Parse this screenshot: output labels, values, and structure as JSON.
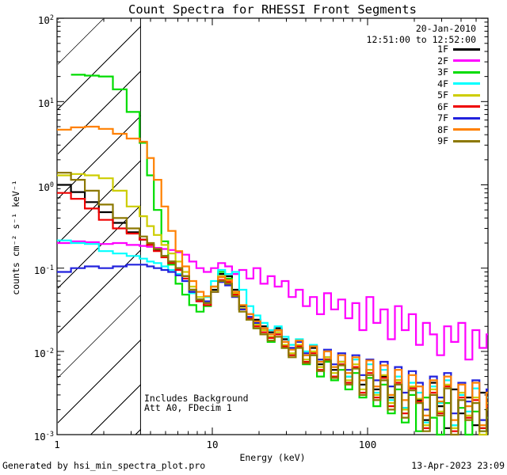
{
  "title": "Count Spectra for RHESSI Front Segments",
  "header": {
    "date": "20-Jan-2010",
    "time_range": "12:51:00 to 12:52:00"
  },
  "legend": {
    "entries": [
      {
        "label": "1F",
        "color": "#000000"
      },
      {
        "label": "2F",
        "color": "#ff00ff"
      },
      {
        "label": "3F",
        "color": "#00dc00"
      },
      {
        "label": "4F",
        "color": "#00ffff"
      },
      {
        "label": "5F",
        "color": "#cdcd00"
      },
      {
        "label": "6F",
        "color": "#ee0000"
      },
      {
        "label": "7F",
        "color": "#2222dd"
      },
      {
        "label": "8F",
        "color": "#ff8000"
      },
      {
        "label": "9F",
        "color": "#8c7800"
      }
    ]
  },
  "annotation": {
    "line1": "Includes Background",
    "line2": "Att A0, FDecim 1"
  },
  "axes": {
    "x": {
      "label": "Energy (keV)",
      "scale": "log",
      "min": 1,
      "max": 600,
      "major_ticks": [
        {
          "value": 1,
          "label": "1"
        },
        {
          "value": 10,
          "label": "10"
        },
        {
          "value": 100,
          "label": "100"
        }
      ]
    },
    "y": {
      "label": "counts cm⁻² s⁻¹ keV⁻¹",
      "scale": "log",
      "min": 0.001,
      "max": 100,
      "major_ticks": [
        {
          "value": 100,
          "exp": "2"
        },
        {
          "value": 10,
          "exp": "1"
        },
        {
          "value": 1,
          "exp": "0"
        },
        {
          "value": 0.1,
          "exp": "-1"
        },
        {
          "value": 0.01,
          "exp": "-2"
        },
        {
          "value": 0.001,
          "exp": "-3"
        }
      ]
    }
  },
  "hatch_region": {
    "from_kev": 1.0,
    "to_kev": 3.45,
    "style": "diagonal-hatch"
  },
  "footer": {
    "left": "Generated by hsi_min_spectra_plot.pro",
    "right": "13-Apr-2023 23:09"
  },
  "chart_data": {
    "type": "line",
    "mode": "histogram-steps",
    "x_scale": "log",
    "y_scale": "log",
    "xlim": [
      1,
      600
    ],
    "ylim": [
      0.001,
      100
    ],
    "xlabel": "Energy (keV)",
    "ylabel": "counts cm-2 s-1 keV-1",
    "energies_kev": [
      1.0,
      1.23,
      1.51,
      1.86,
      2.29,
      2.81,
      3.4,
      3.8,
      4.2,
      4.7,
      5.2,
      5.8,
      6.4,
      7.1,
      7.9,
      8.8,
      9.8,
      10.9,
      12.1,
      13.4,
      14.9,
      16.6,
      18.4,
      20.4,
      22.7,
      25.2,
      28,
      31,
      34.5,
      38.3,
      42.5,
      47.2,
      52.4,
      58.2,
      64.6,
      71.8,
      79.7,
      88.5,
      98.3,
      109,
      121,
      135,
      150,
      166,
      184,
      205,
      227,
      252,
      280,
      311,
      345,
      384,
      426,
      473,
      525,
      583
    ],
    "series": [
      {
        "name": "1F",
        "color": "#000000",
        "values": [
          1.0,
          0.82,
          0.62,
          0.47,
          0.35,
          0.27,
          0.22,
          0.19,
          0.165,
          0.14,
          0.12,
          0.1,
          0.08,
          0.055,
          0.042,
          0.038,
          0.055,
          0.085,
          0.08,
          0.055,
          0.035,
          0.028,
          0.024,
          0.02,
          0.017,
          0.019,
          0.014,
          0.011,
          0.013,
          0.009,
          0.011,
          0.007,
          0.0085,
          0.006,
          0.0075,
          0.005,
          0.0065,
          0.004,
          0.006,
          0.0035,
          0.005,
          0.0028,
          0.0045,
          0.0021,
          0.0038,
          0.0026,
          0.0015,
          0.0042,
          0.0022,
          0.0012,
          0.0035,
          0.0018,
          0.0028,
          0.0013,
          0.0032,
          0.0019
        ]
      },
      {
        "name": "2F",
        "color": "#ff00ff",
        "values": [
          0.2,
          0.21,
          0.205,
          0.195,
          0.2,
          0.19,
          0.185,
          0.18,
          0.175,
          0.17,
          0.165,
          0.155,
          0.145,
          0.12,
          0.1,
          0.09,
          0.1,
          0.115,
          0.105,
          0.085,
          0.095,
          0.075,
          0.1,
          0.065,
          0.08,
          0.06,
          0.07,
          0.045,
          0.055,
          0.035,
          0.045,
          0.028,
          0.05,
          0.032,
          0.042,
          0.025,
          0.038,
          0.018,
          0.045,
          0.022,
          0.032,
          0.014,
          0.035,
          0.018,
          0.028,
          0.012,
          0.022,
          0.016,
          0.009,
          0.02,
          0.013,
          0.022,
          0.008,
          0.018,
          0.011,
          0.016
        ]
      },
      {
        "name": "3F",
        "color": "#00dc00",
        "values": [
          null,
          21,
          20.5,
          20,
          14,
          7.5,
          3.2,
          1.3,
          0.5,
          0.21,
          0.11,
          0.065,
          0.048,
          0.036,
          0.03,
          0.035,
          0.06,
          0.09,
          0.075,
          0.05,
          0.032,
          0.024,
          0.019,
          0.016,
          0.013,
          0.016,
          0.011,
          0.009,
          0.012,
          0.007,
          0.009,
          0.005,
          0.0075,
          0.0045,
          0.006,
          0.0035,
          0.0055,
          0.0028,
          0.0048,
          0.0022,
          0.004,
          0.0018,
          0.0035,
          0.0014,
          0.003,
          0.0011,
          0.0028,
          0.0016,
          0.001,
          0.0024,
          0.0013,
          0.0021,
          0.001,
          0.0019,
          0.0012,
          0.0016
        ]
      },
      {
        "name": "4F",
        "color": "#00ffff",
        "values": [
          0.215,
          0.2,
          0.195,
          0.16,
          0.15,
          0.14,
          0.13,
          0.12,
          0.115,
          0.105,
          0.095,
          0.085,
          0.07,
          0.05,
          0.04,
          0.045,
          0.07,
          0.095,
          0.085,
          0.09,
          0.055,
          0.035,
          0.027,
          0.022,
          0.018,
          0.02,
          0.015,
          0.012,
          0.014,
          0.01,
          0.012,
          0.008,
          0.01,
          0.0065,
          0.009,
          0.005,
          0.008,
          0.0045,
          0.007,
          0.0032,
          0.006,
          0.0026,
          0.005,
          0.0021,
          0.0042,
          0.0032,
          0.0014,
          0.0038,
          0.0024,
          0.0045,
          0.0013,
          0.003,
          0.0019,
          0.0036,
          0.0011,
          0.0028
        ]
      },
      {
        "name": "5F",
        "color": "#cdcd00",
        "values": [
          1.3,
          1.35,
          1.3,
          1.2,
          0.85,
          0.55,
          0.42,
          0.32,
          0.25,
          0.19,
          0.15,
          0.12,
          0.09,
          0.06,
          0.045,
          0.04,
          0.06,
          0.08,
          0.07,
          0.05,
          0.033,
          0.026,
          0.021,
          0.018,
          0.015,
          0.017,
          0.012,
          0.0095,
          0.012,
          0.008,
          0.01,
          0.0065,
          0.0085,
          0.0055,
          0.0075,
          0.0045,
          0.007,
          0.0035,
          0.006,
          0.003,
          0.0052,
          0.0024,
          0.0045,
          0.002,
          0.0038,
          0.0027,
          0.0013,
          0.0035,
          0.0019,
          0.004,
          0.0012,
          0.0032,
          0.0017,
          0.0028,
          0.001,
          0.0024
        ]
      },
      {
        "name": "6F",
        "color": "#ee0000",
        "values": [
          0.8,
          0.68,
          0.52,
          0.38,
          0.3,
          0.26,
          0.22,
          0.19,
          0.16,
          0.135,
          0.115,
          0.095,
          0.075,
          0.052,
          0.04,
          0.036,
          0.052,
          0.072,
          0.068,
          0.048,
          0.032,
          0.025,
          0.02,
          0.017,
          0.0145,
          0.016,
          0.0115,
          0.009,
          0.0115,
          0.0075,
          0.0095,
          0.006,
          0.008,
          0.005,
          0.007,
          0.0042,
          0.0065,
          0.0032,
          0.0055,
          0.0028,
          0.0048,
          0.0022,
          0.0042,
          0.0018,
          0.0036,
          0.0025,
          0.0012,
          0.0032,
          0.0018,
          0.0038,
          0.0011,
          0.0028,
          0.0016,
          0.0026,
          0.0012,
          0.0022
        ]
      },
      {
        "name": "7F",
        "color": "#2222dd",
        "values": [
          0.09,
          0.1,
          0.105,
          0.1,
          0.105,
          0.11,
          0.11,
          0.105,
          0.1,
          0.095,
          0.09,
          0.082,
          0.07,
          0.052,
          0.042,
          0.04,
          0.052,
          0.068,
          0.062,
          0.045,
          0.032,
          0.026,
          0.022,
          0.019,
          0.016,
          0.018,
          0.013,
          0.011,
          0.013,
          0.0095,
          0.0115,
          0.008,
          0.0105,
          0.007,
          0.0095,
          0.006,
          0.009,
          0.0052,
          0.008,
          0.0045,
          0.0075,
          0.0038,
          0.0065,
          0.0032,
          0.0058,
          0.0042,
          0.002,
          0.005,
          0.0028,
          0.0055,
          0.0018,
          0.0042,
          0.0025,
          0.0045,
          0.0015,
          0.0035
        ]
      },
      {
        "name": "8F",
        "color": "#ff8000",
        "values": [
          4.6,
          4.9,
          5.0,
          4.7,
          4.1,
          3.6,
          3.3,
          2.1,
          1.15,
          0.55,
          0.28,
          0.16,
          0.105,
          0.07,
          0.052,
          0.046,
          0.06,
          0.078,
          0.072,
          0.052,
          0.036,
          0.028,
          0.023,
          0.019,
          0.016,
          0.018,
          0.013,
          0.0105,
          0.0135,
          0.009,
          0.0115,
          0.0075,
          0.01,
          0.0065,
          0.009,
          0.0055,
          0.0085,
          0.0045,
          0.0078,
          0.0038,
          0.0068,
          0.003,
          0.006,
          0.0026,
          0.0052,
          0.0038,
          0.0017,
          0.0045,
          0.0025,
          0.005,
          0.0015,
          0.004,
          0.0022,
          0.0042,
          0.0013,
          0.0032
        ]
      },
      {
        "name": "9F",
        "color": "#8c7800",
        "values": [
          1.4,
          1.15,
          0.85,
          0.58,
          0.4,
          0.3,
          0.24,
          0.2,
          0.17,
          0.14,
          0.12,
          0.1,
          0.08,
          0.055,
          0.042,
          0.038,
          0.052,
          0.07,
          0.065,
          0.046,
          0.03,
          0.024,
          0.019,
          0.016,
          0.0135,
          0.015,
          0.011,
          0.0085,
          0.011,
          0.0072,
          0.009,
          0.0058,
          0.0078,
          0.0048,
          0.0068,
          0.004,
          0.0062,
          0.003,
          0.0052,
          0.0026,
          0.0045,
          0.002,
          0.004,
          0.0016,
          0.0034,
          0.0024,
          0.0011,
          0.003,
          0.0017,
          0.0036,
          0.001,
          0.0026,
          0.0015,
          0.0024,
          0.0011,
          0.002
        ]
      }
    ]
  }
}
